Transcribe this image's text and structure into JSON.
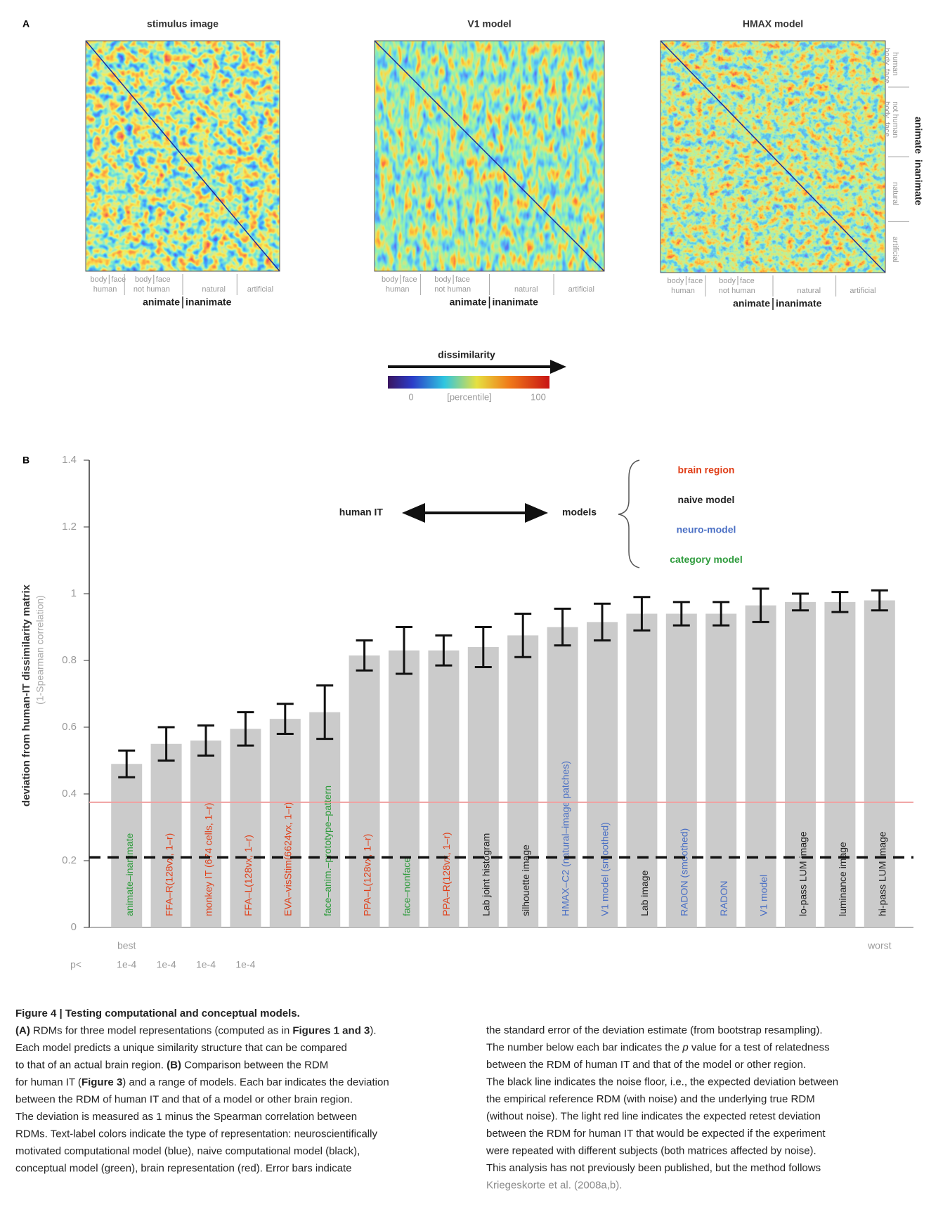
{
  "panel_a": {
    "label": "A",
    "heatmaps": [
      {
        "title": "stimulus image"
      },
      {
        "title": "V1 model"
      },
      {
        "title": "HMAX model"
      }
    ],
    "category_labels": {
      "sub": [
        "body",
        "face"
      ],
      "mid": [
        "human",
        "not human",
        "natural",
        "artificial"
      ],
      "top": [
        "animate",
        "inanimate"
      ]
    },
    "colorbar": {
      "title": "dissimilarity",
      "min_label": "0",
      "unit_label": "[percentile]",
      "max_label": "100"
    }
  },
  "chart_data": {
    "type": "bar",
    "panel_label": "B",
    "y_label": "deviation from human-IT dissimilarity matrix",
    "y_sublabel": "(1-Spearman correlation)",
    "categories": [
      "animate–inanimate",
      "FFA–R(128vx, 1–r)",
      "monkey IT (674 cells, 1–r)",
      "FFA–L(128vx, 1–r)",
      "EVA–visStim(6624vx, 1–r)",
      "face–anim.–prototype–pattern",
      "PPA–L(128vx, 1–r)",
      "face–nonface",
      "PPA–R(128vx, 1–r)",
      "Lab joint histogram",
      "silhouette image",
      "HMAX–C2 (natural–image patches)",
      "V1 model (smoothed)",
      "Lab image",
      "RADON (smoothed)",
      "RADON",
      "V1 model",
      "lo-pass LUM image",
      "luminance image",
      "hi-pass LUM image"
    ],
    "values": [
      0.49,
      0.55,
      0.56,
      0.595,
      0.625,
      0.645,
      0.815,
      0.83,
      0.83,
      0.84,
      0.875,
      0.9,
      0.915,
      0.94,
      0.94,
      0.94,
      0.965,
      0.975,
      0.975,
      0.98
    ],
    "errors": [
      0.04,
      0.05,
      0.045,
      0.05,
      0.045,
      0.08,
      0.045,
      0.07,
      0.045,
      0.06,
      0.065,
      0.055,
      0.055,
      0.05,
      0.035,
      0.035,
      0.05,
      0.025,
      0.03,
      0.03
    ],
    "label_colors": [
      "#2e9b3c",
      "#e0401a",
      "#e0401a",
      "#e0401a",
      "#e0401a",
      "#2e9b3c",
      "#e0401a",
      "#2e9b3c",
      "#e0401a",
      "#222222",
      "#222222",
      "#4a6fc4",
      "#4a6fc4",
      "#222222",
      "#4a6fc4",
      "#4a6fc4",
      "#4a6fc4",
      "#222222",
      "#222222",
      "#222222"
    ],
    "color": "#cbcbcb",
    "p_label": "p<",
    "p_values": [
      "1e-4",
      "1e-4",
      "1e-4",
      "1e-4",
      null,
      null,
      null,
      null,
      null,
      null,
      null,
      null,
      null,
      null,
      null,
      null,
      null,
      null,
      null,
      null
    ],
    "best_label": "best",
    "worst_label": "worst",
    "ylim": [
      0,
      1.4
    ],
    "yticks": [
      0,
      0.2,
      0.4,
      0.6,
      0.8,
      1,
      1.2,
      1.4
    ],
    "noise_floor": 0.21,
    "retest_deviation": 0.375,
    "direction": {
      "left": "human IT",
      "right": "models"
    },
    "legend": [
      {
        "name": "brain region",
        "color": "#e0401a"
      },
      {
        "name": "naive model",
        "color": "#222222"
      },
      {
        "name": "neuro-model",
        "color": "#4a6fc4"
      },
      {
        "name": "category model",
        "color": "#2e9b3c"
      }
    ]
  },
  "caption": {
    "left": [
      [
        {
          "text": "Figure 4 | Testing computational and conceptual models.",
          "bold": true
        }
      ],
      [
        {
          "text": "(A)",
          "bold": true
        },
        " RDMs for three model representations (computed as in ",
        {
          "text": "Figures 1 and 3",
          "bold": true
        },
        ")."
      ],
      [
        "Each model predicts a unique similarity structure that can be compared"
      ],
      [
        "to that of an actual brain region. ",
        {
          "text": "(B)",
          "bold": true
        },
        " Comparison between the RDM"
      ],
      [
        "for human IT (",
        {
          "text": "Figure 3",
          "bold": true
        },
        ") and a range of models. Each bar indicates the deviation"
      ],
      [
        "between the RDM of human IT and that of a model or other brain region."
      ],
      [
        "The deviation is measured as 1 minus the Spearman correlation between"
      ],
      [
        "RDMs. Text-label colors indicate the type of representation: neuroscientifically"
      ],
      [
        "motivated computational model (blue), naive computational model (black),"
      ],
      [
        "conceptual model (green), brain representation (red). Error bars indicate"
      ]
    ],
    "right": [
      [
        "the standard error of the deviation estimate (from bootstrap resampling)."
      ],
      [
        "The number below each bar indicates the ",
        {
          "text": "p",
          "italic": true
        },
        " value for a test of relatedness"
      ],
      [
        "between the RDM of human IT and that of the model or other region."
      ],
      [
        "The black line indicates the noise floor, i.e., the expected deviation between"
      ],
      [
        "the empirical reference RDM (with noise) and the underlying true RDM"
      ],
      [
        "(without noise). The light red line indicates the expected retest deviation"
      ],
      [
        "between the RDM for human IT that would be expected if the experiment"
      ],
      [
        "were repeated with different subjects (both matrices affected by noise)."
      ],
      [
        "This analysis has not previously been published, but the method follows"
      ],
      [
        {
          "text": "Kriegeskorte et al. (2008a,b).",
          "link": true
        }
      ]
    ]
  }
}
